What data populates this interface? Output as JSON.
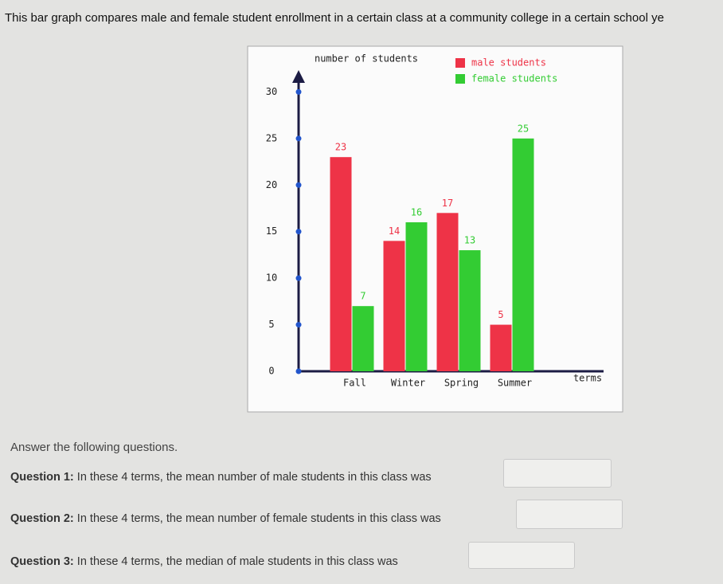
{
  "intro": "This bar graph compares male and female student enrollment in a certain class at a community college in a certain school ye",
  "chart_data": {
    "type": "bar",
    "y_label": "number of students",
    "x_label": "terms",
    "categories": [
      "Fall",
      "Winter",
      "Spring",
      "Summer"
    ],
    "series": [
      {
        "name": "male students",
        "color": "#ee3347",
        "values": [
          23,
          14,
          17,
          5
        ]
      },
      {
        "name": "female students",
        "color": "#33cc33",
        "values": [
          7,
          16,
          13,
          25
        ]
      }
    ],
    "ylim": [
      0,
      32
    ],
    "yticks": [
      0,
      5,
      10,
      15,
      20,
      25,
      30
    ],
    "legend": "top-right"
  },
  "instructions": "Answer the following questions.",
  "questions": [
    {
      "label": "Question 1:",
      "text": "In these 4 terms, the mean number of male students in this class was"
    },
    {
      "label": "Question 2:",
      "text": "In these 4 terms, the mean number of female students in this class was"
    },
    {
      "label": "Question 3:",
      "text": "In these 4 terms, the median of male students in this class was"
    }
  ]
}
